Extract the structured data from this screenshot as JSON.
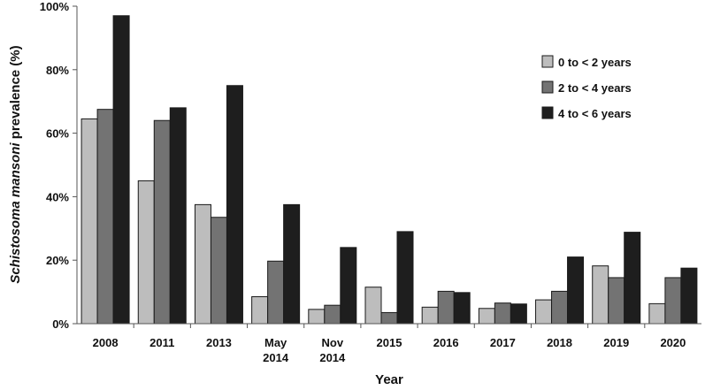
{
  "chart_data": {
    "type": "bar",
    "categories": [
      [
        "2008"
      ],
      [
        "2011"
      ],
      [
        "2013"
      ],
      [
        "May",
        "2014"
      ],
      [
        "Nov",
        "2014"
      ],
      [
        "2015"
      ],
      [
        "2016"
      ],
      [
        "2017"
      ],
      [
        "2018"
      ],
      [
        "2019"
      ],
      [
        "2020"
      ]
    ],
    "series": [
      {
        "name": "0 to < 2 years",
        "color": "#bdbdbd",
        "values": [
          64.5,
          45,
          37.5,
          8.5,
          4.5,
          11.5,
          5.2,
          4.8,
          7.5,
          18.2,
          6.3
        ]
      },
      {
        "name": "2 to < 4 years",
        "color": "#737373",
        "values": [
          67.5,
          64,
          33.5,
          19.7,
          5.8,
          3.5,
          10.2,
          6.5,
          10.2,
          14.5,
          14.5
        ]
      },
      {
        "name": "4 to < 6 years",
        "color": "#1e1e1e",
        "values": [
          97,
          68,
          75,
          37.5,
          24,
          29,
          9.8,
          6.2,
          21,
          28.8,
          17.5
        ]
      }
    ],
    "ylim": [
      0,
      100
    ],
    "yticks": [
      "0%",
      "20%",
      "40%",
      "60%",
      "80%",
      "100%"
    ],
    "ytick_values": [
      0,
      20,
      40,
      60,
      80,
      100
    ],
    "xlabel": "Year",
    "ylabel_italic": "Schistosoma mansoni",
    "ylabel_rest": " prevalence (%)",
    "legend_position": "top-right",
    "grid": false
  }
}
